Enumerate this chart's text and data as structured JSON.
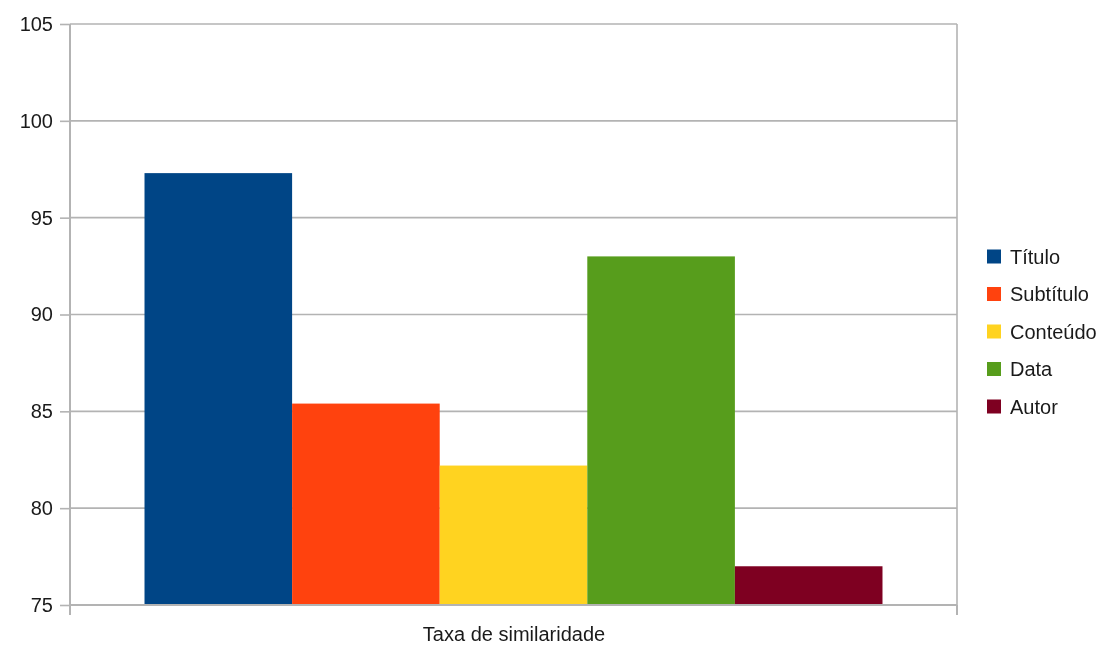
{
  "chart_data": {
    "type": "bar",
    "categories": [
      "Taxa de similaridade"
    ],
    "series": [
      {
        "name": "Título",
        "color": "#004586",
        "values": [
          97.3
        ]
      },
      {
        "name": "Subtítulo",
        "color": "#ff420e",
        "values": [
          85.4
        ]
      },
      {
        "name": "Conteúdo",
        "color": "#ffd320",
        "values": [
          82.2
        ]
      },
      {
        "name": "Data",
        "color": "#579d1c",
        "values": [
          93.0
        ]
      },
      {
        "name": "Autor",
        "color": "#7e0021",
        "values": [
          77.0
        ]
      }
    ],
    "ylim": [
      75,
      105
    ],
    "yticks": [
      75,
      80,
      85,
      90,
      95,
      100,
      105
    ],
    "grid": true,
    "legend": "right"
  }
}
